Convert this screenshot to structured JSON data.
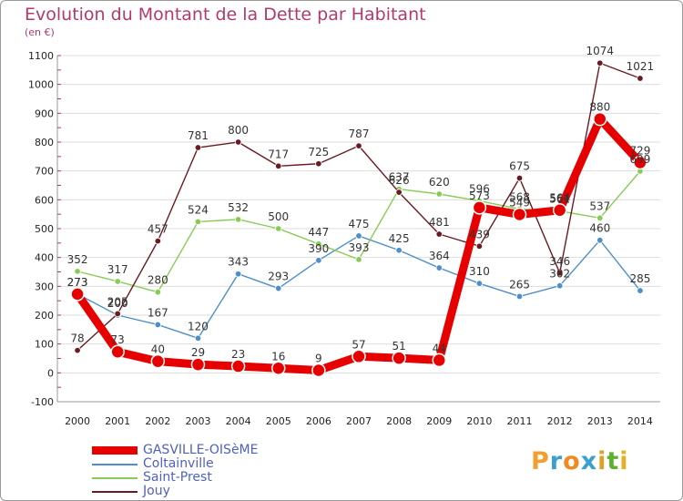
{
  "title": "Evolution du Montant de la Dette par Habitant",
  "unit_label": "(en €)",
  "logo": {
    "text": "Proxiti",
    "letter_colors": [
      "#f0a030",
      "#3aa0d0",
      "#f08a20",
      "#3aa0d0",
      "#e0a020",
      "#60b030",
      "#e8b020"
    ]
  },
  "chart_data": {
    "type": "line",
    "title": "Evolution du Montant de la Dette par Habitant",
    "ylabel": "(en €)",
    "xlabel": "",
    "x": [
      2000,
      2001,
      2002,
      2003,
      2004,
      2005,
      2006,
      2007,
      2008,
      2009,
      2010,
      2011,
      2012,
      2013,
      2014
    ],
    "ylim": [
      -100,
      1100
    ],
    "yticks": [
      -100,
      0,
      100,
      200,
      300,
      400,
      500,
      600,
      700,
      800,
      900,
      1000,
      1100
    ],
    "grid": "horizontal",
    "legend_position": "bottom-left",
    "series": [
      {
        "name": "GASVILLE-OISèME",
        "color": "#e60000",
        "highlight": true,
        "values": [
          273,
          73,
          40,
          29,
          23,
          16,
          9,
          57,
          51,
          44,
          573,
          549,
          564,
          880,
          729
        ]
      },
      {
        "name": "Coltainville",
        "color": "#4f8fc8",
        "highlight": false,
        "values": [
          273,
          200,
          167,
          120,
          343,
          293,
          390,
          475,
          425,
          364,
          310,
          265,
          302,
          460,
          285
        ]
      },
      {
        "name": "Saint-Prest",
        "color": "#88cc55",
        "highlight": false,
        "values": [
          352,
          317,
          280,
          524,
          532,
          500,
          447,
          393,
          637,
          620,
          596,
          568,
          561,
          537,
          699
        ]
      },
      {
        "name": "Jouy",
        "color": "#6a1a20",
        "highlight": false,
        "values": [
          78,
          205,
          457,
          781,
          800,
          717,
          725,
          787,
          626,
          481,
          439,
          675,
          346,
          1074,
          1021
        ]
      }
    ]
  }
}
